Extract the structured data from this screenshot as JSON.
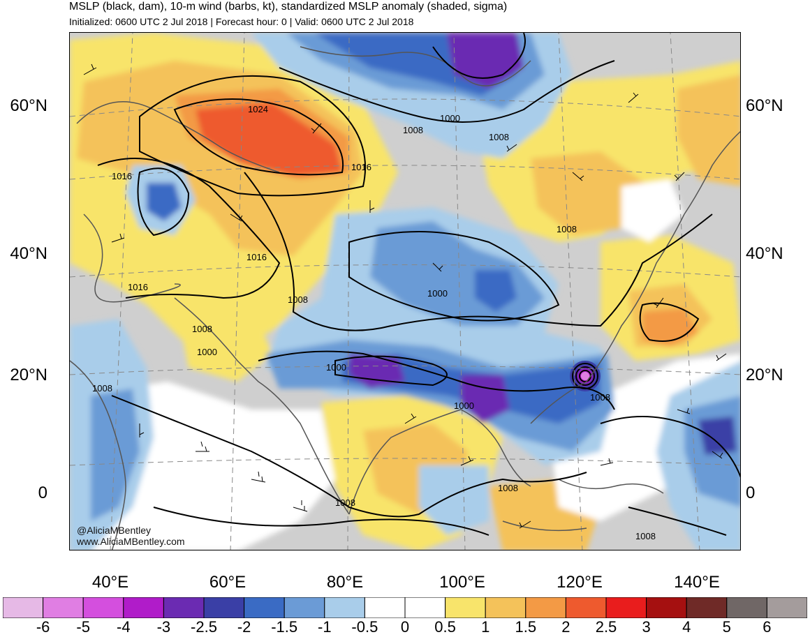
{
  "title": {
    "line1": "MSLP (black, dam), 10-m wind (barbs, kt), standardized MSLP anomaly (shaded, sigma)",
    "line2": "Initialized: 0600 UTC 2 Jul 2018 | Forecast hour: 0 | Valid: 0600 UTC 2 Jul 2018"
  },
  "map": {
    "region": "Asia / Indian Ocean / Western Pacific",
    "lat_labels": [
      "60°N",
      "40°N",
      "20°N",
      "0"
    ],
    "lon_labels": [
      "40°E",
      "60°E",
      "80°E",
      "100°E",
      "120°E",
      "140°E"
    ],
    "contour_labels": [
      "1024",
      "1016",
      "1016",
      "1016",
      "1016",
      "1008",
      "1008",
      "1008",
      "1008",
      "1008",
      "1008",
      "1008",
      "1008",
      "1008",
      "1008",
      "1000",
      "1000",
      "1000",
      "1000",
      "1000"
    ],
    "features": {
      "high_pressure": "Ural / West Siberia anticyclone (~1024 hPa), positive anomaly +2 to +2.5 sigma",
      "low_pressure": [
        "South Asian monsoon trough (~1000 hPa)",
        "Tropical cyclone near 20°N 121°E, anomaly below -6 sigma",
        "Low over northern Siberia (~1000 hPa)"
      ]
    }
  },
  "credit": {
    "handle": "@AliciaMBentley",
    "website": "www.AliciaMBentley.com"
  },
  "colorbar": {
    "labels": [
      "-6",
      "-5",
      "-4",
      "-3",
      "-2.5",
      "-2",
      "-1.5",
      "-1",
      "-0.5",
      "0",
      "0.5",
      "1",
      "1.5",
      "2",
      "2.5",
      "3",
      "4",
      "5",
      "6"
    ],
    "colors": [
      "#e6b9e6",
      "#e07ee3",
      "#d44fde",
      "#b01cc9",
      "#6b2bb2",
      "#3a3fa6",
      "#3a6bc4",
      "#6b9bd6",
      "#a9cdea",
      "#ffffff",
      "#ffffff",
      "#f8e46b",
      "#f4c25a",
      "#f39a45",
      "#ee5a2e",
      "#e91d1d",
      "#a51010",
      "#6f2a27",
      "#706766",
      "#a49c9c"
    ]
  }
}
